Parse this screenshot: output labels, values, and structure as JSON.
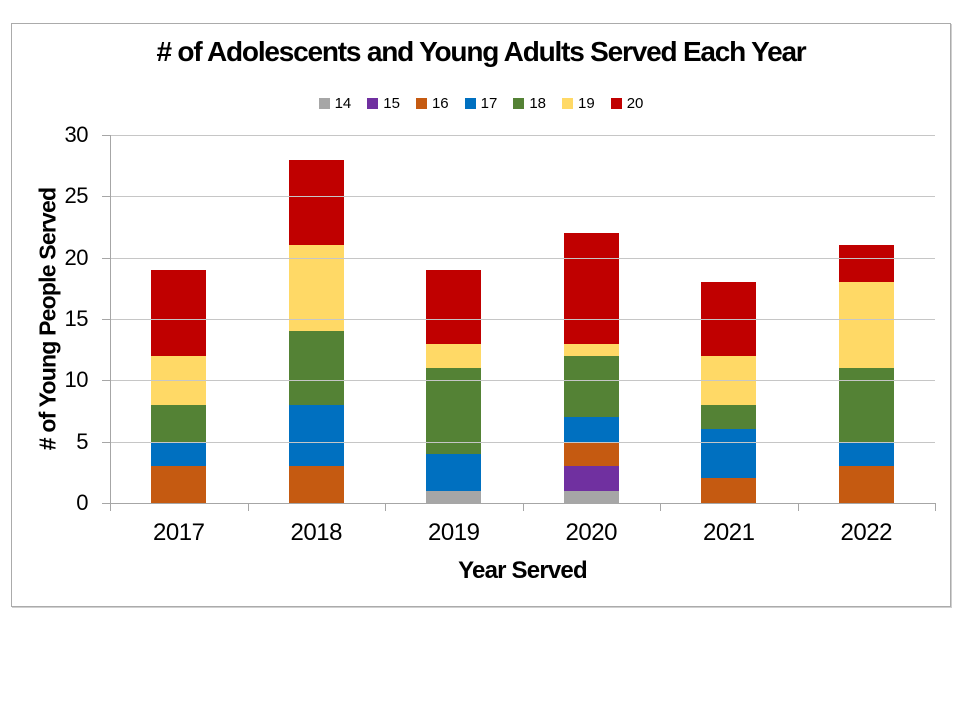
{
  "chart_data": {
    "type": "bar",
    "subtype": "stacked",
    "title": "# of Adolescents and Young Adults Served Each Year",
    "xlabel": "Year Served",
    "ylabel": "# of Young People Served",
    "categories": [
      "2017",
      "2018",
      "2019",
      "2020",
      "2021",
      "2022"
    ],
    "series": [
      {
        "name": "14",
        "color": "#A6A6A6",
        "values": [
          0,
          0,
          1,
          1,
          0,
          0
        ]
      },
      {
        "name": "15",
        "color": "#7030A0",
        "values": [
          0,
          0,
          0,
          2,
          0,
          0
        ]
      },
      {
        "name": "16",
        "color": "#C55A11",
        "values": [
          3,
          3,
          0,
          2,
          2,
          3
        ]
      },
      {
        "name": "17",
        "color": "#0070C0",
        "values": [
          2,
          5,
          3,
          2,
          4,
          2
        ]
      },
      {
        "name": "18",
        "color": "#548235",
        "values": [
          3,
          6,
          7,
          5,
          2,
          6
        ]
      },
      {
        "name": "19",
        "color": "#FFD966",
        "values": [
          4,
          7,
          2,
          1,
          4,
          7
        ]
      },
      {
        "name": "20",
        "color": "#C00000",
        "values": [
          7,
          7,
          6,
          9,
          6,
          3
        ]
      }
    ],
    "totals": [
      19,
      28,
      19,
      22,
      18,
      21
    ],
    "ylim": [
      0,
      30
    ],
    "ytick_step": 5,
    "yticks": [
      "0",
      "5",
      "10",
      "15",
      "20",
      "25",
      "30"
    ],
    "legend_position": "top",
    "grid": true,
    "colors": {
      "gridline": "#C6C6C6",
      "axis": "#A6A6A6",
      "frame_border": "#ABABAB",
      "background": "#FFFFFF",
      "text": "#000000"
    }
  }
}
